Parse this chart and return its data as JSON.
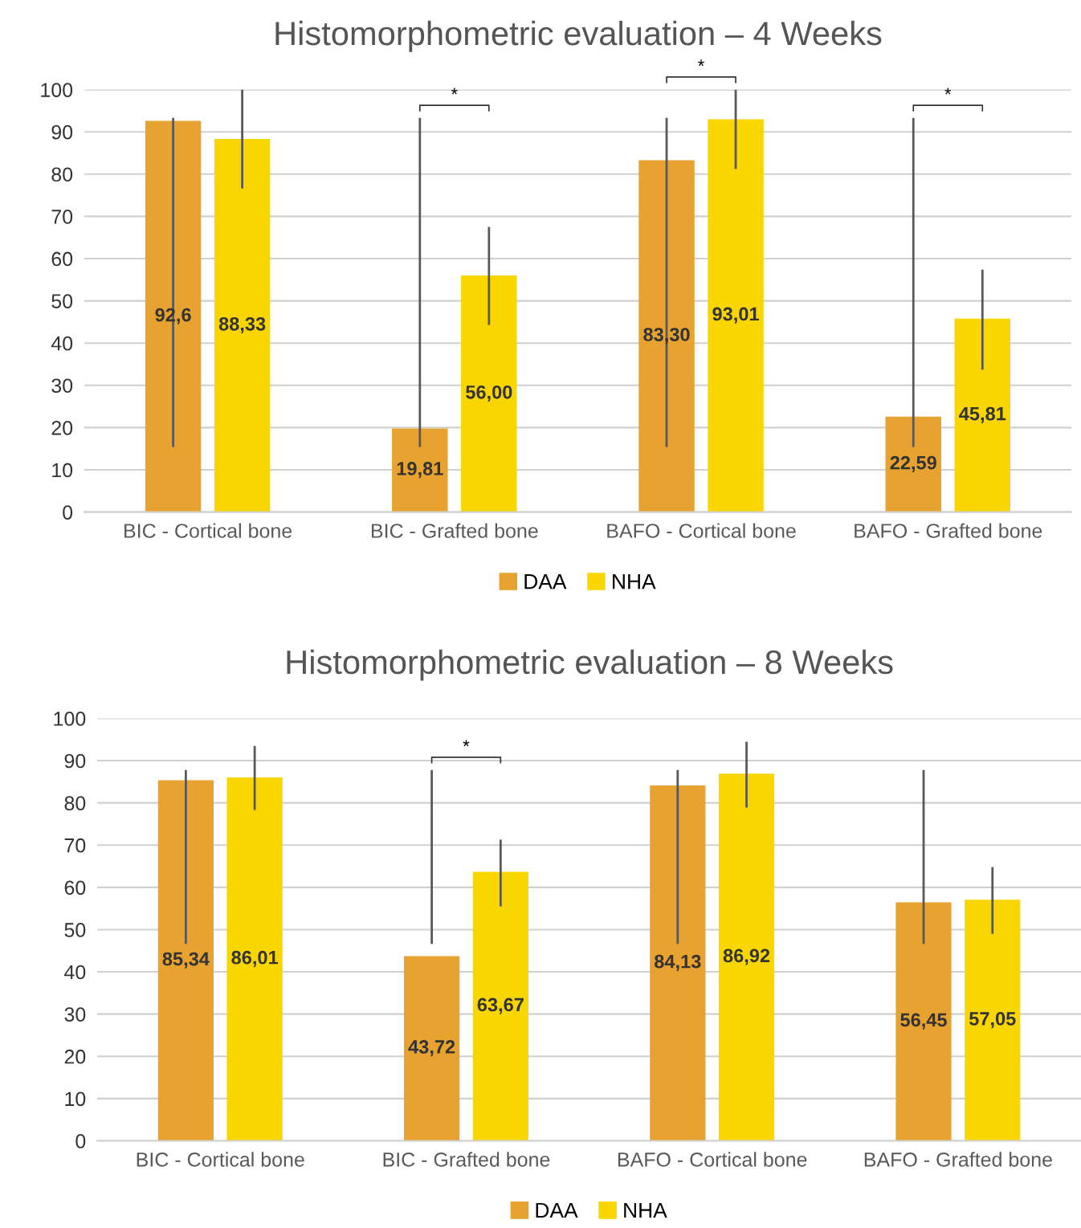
{
  "chart_data": [
    {
      "type": "bar",
      "title": "Histomorphometric evaluation – 4 Weeks",
      "categories": [
        "BIC - Cortical bone",
        "BIC - Grafted bone",
        "BAFO - Cortical bone",
        "BAFO - Grafted bone"
      ],
      "series": [
        {
          "name": "DAA",
          "color": "#e8a22f",
          "values": [
            92.6,
            19.81,
            83.3,
            22.59
          ],
          "value_labels": [
            "92,6",
            "19,81",
            "83,30",
            "22,59"
          ],
          "errors": [
            [
              15.4,
              93.3
            ],
            [
              15.4,
              93.3
            ],
            [
              15.4,
              93.3
            ],
            [
              15.4,
              93.3
            ]
          ]
        },
        {
          "name": "NHA",
          "color": "#fad600",
          "values": [
            88.33,
            56.0,
            93.01,
            45.81
          ],
          "value_labels": [
            "88,33",
            "56,00",
            "93,01",
            "45,81"
          ],
          "errors": [
            [
              76.6,
              100
            ],
            [
              44.3,
              67.5
            ],
            [
              81.2,
              100
            ],
            [
              33.7,
              57.4
            ]
          ]
        }
      ],
      "annotations": [
        "*",
        "*",
        "*"
      ],
      "ylim": [
        0,
        100
      ],
      "yticks": [
        0,
        10,
        20,
        30,
        40,
        50,
        60,
        70,
        80,
        90,
        100
      ],
      "grid": "y",
      "legend": "bottom"
    },
    {
      "type": "bar",
      "title": "Histomorphometric evaluation – 8 Weeks",
      "categories": [
        "BIC - Cortical bone",
        "BIC - Grafted bone",
        "BAFO - Cortical bone",
        "BAFO - Grafted bone"
      ],
      "series": [
        {
          "name": "DAA",
          "color": "#e8a22f",
          "values": [
            85.34,
            43.72,
            84.13,
            56.45
          ],
          "value_labels": [
            "85,34",
            "43,72",
            "84,13",
            "56,45"
          ],
          "errors": [
            [
              46.6,
              87.8
            ],
            [
              46.6,
              87.8
            ],
            [
              46.6,
              87.8
            ],
            [
              46.6,
              87.8
            ]
          ]
        },
        {
          "name": "NHA",
          "color": "#fad600",
          "values": [
            86.01,
            63.67,
            86.92,
            57.05
          ],
          "value_labels": [
            "86,01",
            "63,67",
            "86,92",
            "57,05"
          ],
          "errors": [
            [
              78.3,
              93.5
            ],
            [
              55.5,
              71.3
            ],
            [
              78.9,
              94.5
            ],
            [
              49.0,
              64.8
            ]
          ]
        }
      ],
      "annotations": [
        "*"
      ],
      "ylim": [
        0,
        100
      ],
      "yticks": [
        0,
        10,
        20,
        30,
        40,
        50,
        60,
        70,
        80,
        90,
        100
      ],
      "grid": "y",
      "legend": "bottom"
    }
  ]
}
